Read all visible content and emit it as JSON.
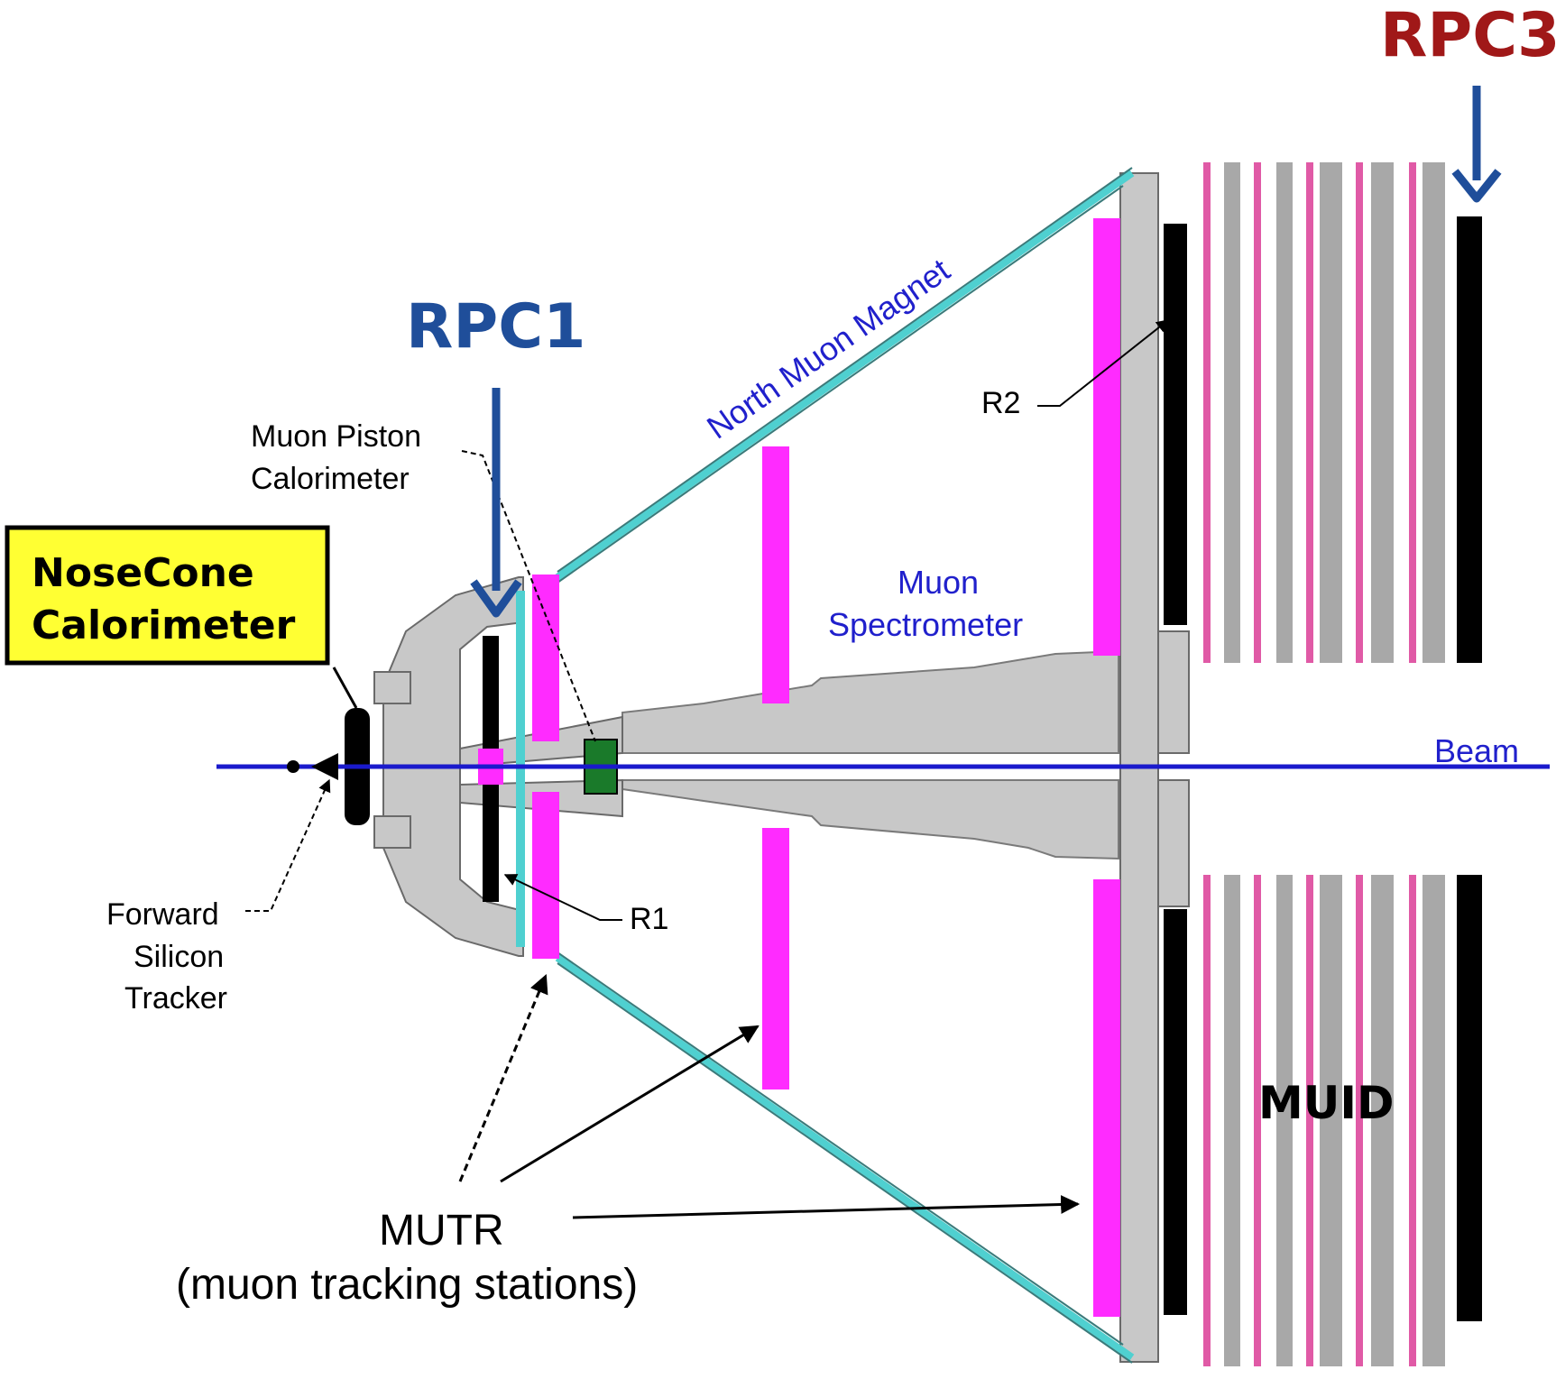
{
  "labels": {
    "rpc1": "RPC1",
    "rpc3": "RPC3",
    "nosecone_line1": "NoseCone",
    "nosecone_line2": "Calorimeter",
    "mpc_line1": "Muon Piston",
    "mpc_line2": "Calorimeter",
    "north_muon_magnet": "North Muon Magnet",
    "r2": "R2",
    "r1": "R1",
    "muon_spec_line1": "Muon",
    "muon_spec_line2": "Spectrometer",
    "beam": "Beam",
    "fst_line1": "Forward",
    "fst_line2": "Silicon",
    "fst_line3": "Tracker",
    "muid": "MUID",
    "mutr_line1": "MUTR",
    "mutr_line2": "(muon tracking stations)"
  },
  "colors": {
    "rpc1_label": "#1f4e9a",
    "rpc3_label": "#a01818",
    "arrow_blue": "#1f4e9a",
    "magnet_cyan": "#4fd0d0",
    "station_magenta": "#ff2bff",
    "muid_pink": "#e05aa6",
    "muid_gray": "#a8a8a8",
    "steel_gray": "#c8c8c8",
    "beam_blue": "#1a1acc",
    "label_blue": "#2020cc",
    "nosecone_box": "#ffff33",
    "mpc_green": "#1a7a2a"
  }
}
